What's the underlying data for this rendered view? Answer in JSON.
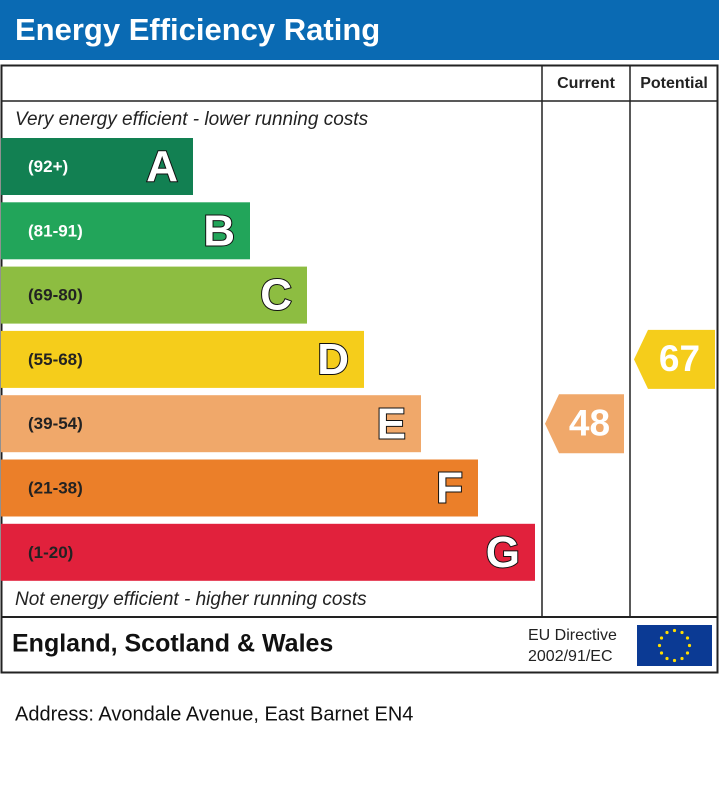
{
  "header": {
    "title": "Energy Efficiency Rating"
  },
  "columns": {
    "current": "Current",
    "potential": "Potential"
  },
  "top_note": "Very energy efficient - lower running costs",
  "bands": [
    {
      "range": "(92+)",
      "letter": "A",
      "color": "#128052"
    },
    {
      "range": "(81-91)",
      "letter": "B",
      "color": "#22a55a"
    },
    {
      "range": "(69-80)",
      "letter": "C",
      "color": "#8dbd41"
    },
    {
      "range": "(55-68)",
      "letter": "D",
      "color": "#f5cd1b"
    },
    {
      "range": "(39-54)",
      "letter": "E",
      "color": "#f0a86a"
    },
    {
      "range": "(21-38)",
      "letter": "F",
      "color": "#eb7f29"
    },
    {
      "range": "(1-20)",
      "letter": "G",
      "color": "#e1213c"
    }
  ],
  "bottom_note": "Not energy efficient - higher running costs",
  "current": {
    "value": 48
  },
  "potential": {
    "value": 67
  },
  "footer": {
    "region": "England, Scotland & Wales",
    "directive": [
      "EU Directive",
      "2002/91/EC"
    ]
  },
  "address": "Address: Avondale Avenue, East Barnet EN4"
}
